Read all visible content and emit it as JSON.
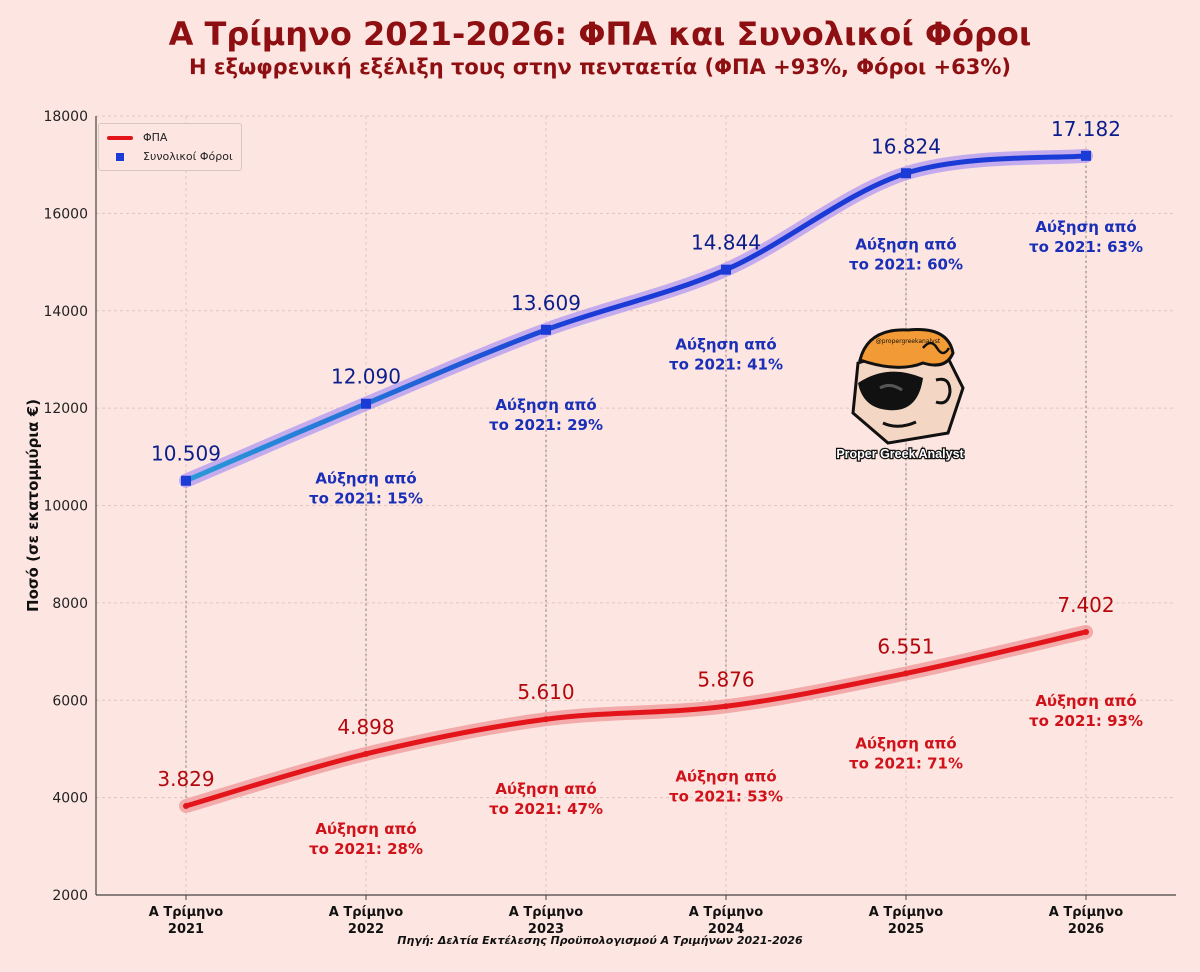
{
  "title": "Α Τρίμηνο 2021-2026: ΦΠΑ και Συνολικοί Φόροι",
  "subtitle": "Η εξωφρενική εξέλιξη τους στην πενταετία (ΦΠΑ +93%, Φόροι +63%)",
  "source": "Πηγή: Δελτία Εκτέλεσης Προϋπολογισμού Α Τριμήνων 2021-2026",
  "watermark": "Proper Greek Analyst",
  "watermark_handle": "@propergreekanalyst",
  "colors": {
    "background": "#fde6e1",
    "title": "#8e0f12",
    "vat": "#e3151b",
    "taxes": "#1a3bd6",
    "taxes_start": "#2a9ad8"
  },
  "chart_data": {
    "type": "line",
    "ylabel": "Ποσό (σε εκατομμύρια €)",
    "xlabel": "",
    "ylim": [
      2000,
      18000
    ],
    "yticks": [
      "2000",
      "4000",
      "6000",
      "8000",
      "10000",
      "12000",
      "14000",
      "16000",
      "18000"
    ],
    "categories": [
      [
        "Α Τρίμηνο",
        "2021"
      ],
      [
        "Α Τρίμηνο",
        "2022"
      ],
      [
        "Α Τρίμηνο",
        "2023"
      ],
      [
        "Α Τρίμηνο",
        "2024"
      ],
      [
        "Α Τρίμηνο",
        "2025"
      ],
      [
        "Α Τρίμηνο",
        "2026"
      ]
    ],
    "grid": true,
    "legend_position": "top-left",
    "series": [
      {
        "name": "ΦΠΑ",
        "values": [
          3829,
          4898,
          5610,
          5876,
          6551,
          7402
        ],
        "labels": [
          "3.829",
          "4.898",
          "5.610",
          "5.876",
          "6.551",
          "7.402"
        ],
        "annotations": [
          "",
          "Αύξηση από|το 2021: 28%",
          "Αύξηση από|το 2021: 47%",
          "Αύξηση από|το 2021: 53%",
          "Αύξηση από|το 2021: 71%",
          "Αύξηση από|το 2021: 93%"
        ]
      },
      {
        "name": "Συνολικοί Φόροι",
        "values": [
          10509,
          12090,
          13609,
          14844,
          16824,
          17182
        ],
        "labels": [
          "10.509",
          "12.090",
          "13.609",
          "14.844",
          "16.824",
          "17.182"
        ],
        "annotations": [
          "",
          "Αύξηση από|το 2021: 15%",
          "Αύξηση από|το 2021: 29%",
          "Αύξηση από|το 2021: 41%",
          "Αύξηση από|το 2021: 60%",
          "Αύξηση από|το 2021: 63%"
        ]
      }
    ]
  }
}
